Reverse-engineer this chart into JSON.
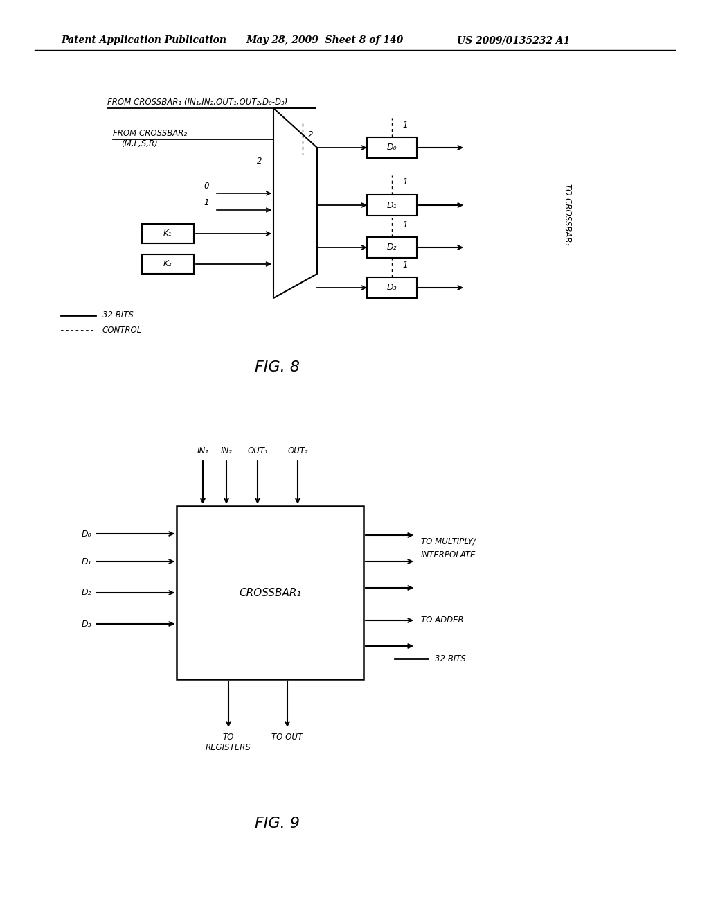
{
  "bg_color": "#ffffff",
  "header_text": "Patent Application Publication",
  "header_date": "May 28, 2009  Sheet 8 of 140",
  "header_patent": "US 2009/0135232 A1",
  "fig8_label": "FIG. 8",
  "fig9_label": "FIG. 9",
  "fig8_title1": "FROM CROSSBAR₁ (IN₁,IN₂,OUT₁,OUT₂,D₀-D₃)",
  "fig8_title2": "FROM CROSSBAR₂",
  "fig8_title2b": "(M,L,S,R)",
  "fig8_legend1": "32 BITS",
  "fig8_legend2": "CONTROL",
  "fig8_to_crossbar": "TO CROSSBAR₁",
  "fig9_crossbar_label": "CROSSBAR₁",
  "fig9_to_multiply": "TO MULTIPLY/",
  "fig9_interpolate": "INTERPOLATE",
  "fig9_to_adder": "TO ADDER",
  "fig9_32bits": "32 BITS",
  "fig9_to_registers": "TO\nREGISTERS",
  "fig9_to_out": "TO OUT",
  "fig9_in1": "IN₁",
  "fig9_in2": "IN₂",
  "fig9_out1": "OUT₁",
  "fig9_out2": "OUT₂",
  "fig9_d0": "D₀",
  "fig9_d1": "D₁",
  "fig9_d2": "D₂",
  "fig9_d3": "D₃",
  "fig8_d0": "D₀",
  "fig8_d1": "D₁",
  "fig8_d2": "D₂",
  "fig8_d3": "D₃",
  "fig8_k1": "K₁",
  "fig8_k2": "K₂"
}
